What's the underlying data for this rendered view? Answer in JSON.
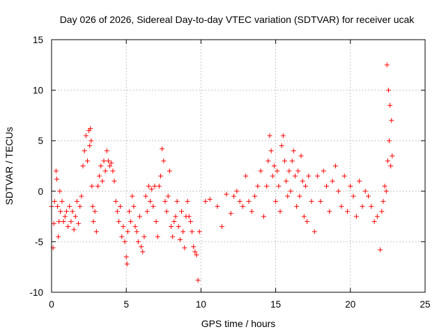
{
  "chart_data": {
    "type": "scatter",
    "title": "Day 026 of 2026, Sidereal Day-to-day VTEC variation (SDTVAR) for receiver ucak",
    "xlabel": "GPS time / hours",
    "ylabel": "SDTVAR / TECUs",
    "xlim": [
      0,
      25
    ],
    "ylim": [
      -10,
      15
    ],
    "xticks": [
      0,
      5,
      10,
      15,
      20,
      25
    ],
    "yticks": [
      -10,
      -5,
      0,
      5,
      10,
      15
    ],
    "xtick_labels": [
      "0",
      "5",
      "10",
      "15",
      "20",
      "25"
    ],
    "ytick_labels": [
      "-10",
      "-5",
      "0",
      "5",
      "10",
      "15"
    ],
    "grid": true,
    "legend": "none",
    "marker": "plus",
    "series": [
      {
        "name": "ucak",
        "color": "#ff0000",
        "x": [
          0.0,
          0.1,
          0.15,
          0.2,
          0.3,
          0.35,
          0.4,
          0.45,
          0.5,
          0.55,
          0.6,
          0.7,
          0.8,
          0.9,
          1.0,
          1.1,
          1.2,
          1.3,
          1.4,
          1.5,
          1.6,
          1.7,
          1.8,
          1.9,
          2.0,
          2.1,
          2.2,
          2.3,
          2.4,
          2.5,
          2.55,
          2.6,
          2.65,
          2.7,
          2.75,
          2.8,
          2.9,
          3.0,
          3.1,
          3.2,
          3.3,
          3.4,
          3.5,
          3.6,
          3.7,
          3.8,
          3.9,
          4.0,
          4.1,
          4.2,
          4.3,
          4.4,
          4.5,
          4.6,
          4.7,
          4.8,
          4.9,
          5.0,
          5.05,
          5.1,
          5.2,
          5.3,
          5.4,
          5.5,
          5.6,
          5.7,
          5.8,
          5.9,
          6.0,
          6.1,
          6.2,
          6.3,
          6.4,
          6.5,
          6.6,
          6.7,
          6.8,
          6.9,
          7.0,
          7.1,
          7.2,
          7.3,
          7.4,
          7.5,
          7.6,
          7.7,
          7.8,
          7.9,
          8.0,
          8.1,
          8.2,
          8.3,
          8.4,
          8.5,
          8.6,
          8.7,
          8.8,
          8.9,
          9.0,
          9.1,
          9.2,
          9.3,
          9.4,
          9.5,
          9.6,
          9.7,
          9.8,
          9.9,
          10.3,
          10.6,
          11.1,
          11.4,
          11.7,
          12.0,
          12.2,
          12.4,
          12.6,
          12.8,
          13.0,
          13.2,
          13.4,
          13.6,
          13.8,
          14.0,
          14.2,
          14.4,
          14.5,
          14.6,
          14.7,
          14.8,
          14.9,
          15.0,
          15.1,
          15.2,
          15.3,
          15.4,
          15.5,
          15.6,
          15.7,
          15.8,
          15.9,
          16.0,
          16.1,
          16.2,
          16.3,
          16.4,
          16.5,
          16.6,
          16.7,
          16.8,
          16.9,
          17.0,
          17.1,
          17.2,
          17.4,
          17.6,
          17.8,
          18.0,
          18.2,
          18.4,
          18.6,
          18.8,
          19.0,
          19.2,
          19.4,
          19.6,
          19.8,
          20.0,
          20.2,
          20.4,
          20.6,
          20.8,
          21.0,
          21.2,
          21.4,
          21.6,
          21.8,
          22.0,
          22.1,
          22.2,
          22.3,
          22.4,
          22.45,
          22.5,
          22.55,
          22.6,
          22.65,
          22.7,
          22.75,
          22.8
        ],
        "y": [
          -1.5,
          -5.6,
          -3.2,
          -1.0,
          2.0,
          1.2,
          -1.5,
          -4.5,
          -3.0,
          0.0,
          -2.0,
          -1.0,
          -3.0,
          -2.5,
          -2.0,
          -3.5,
          -1.5,
          -3.0,
          -2.0,
          -3.8,
          -2.5,
          -1.0,
          -3.2,
          -1.5,
          -0.5,
          2.5,
          4.0,
          5.5,
          3.0,
          6.0,
          4.5,
          6.2,
          5.0,
          0.5,
          -1.5,
          -3.0,
          -2.0,
          -4.0,
          0.5,
          1.5,
          2.5,
          1.0,
          3.0,
          2.0,
          4.0,
          3.0,
          2.5,
          2.8,
          2.0,
          1.0,
          -1.0,
          -2.0,
          -3.0,
          -1.5,
          -4.5,
          -3.5,
          -5.0,
          -6.5,
          -7.2,
          -4.0,
          -2.0,
          -3.0,
          -0.5,
          -1.5,
          -3.5,
          -4.0,
          -5.0,
          -2.5,
          -5.5,
          -6.0,
          -4.5,
          -0.5,
          -2.0,
          0.5,
          -1.0,
          0.2,
          -1.5,
          0.5,
          -3.0,
          -4.5,
          0.5,
          1.5,
          4.2,
          3.0,
          -1.0,
          -2.0,
          -0.5,
          2.0,
          -3.5,
          -4.5,
          -3.0,
          -2.5,
          -1.0,
          -3.5,
          -4.8,
          -2.0,
          -4.0,
          -5.6,
          -2.5,
          -1.0,
          -2.5,
          -3.0,
          -4.0,
          -5.5,
          -6.0,
          -6.3,
          -8.8,
          -4.0,
          -1.0,
          -0.8,
          -1.5,
          -3.5,
          -0.3,
          -2.2,
          -0.5,
          0.0,
          -1.0,
          -1.5,
          1.5,
          -1.0,
          -2.0,
          -0.5,
          0.5,
          2.0,
          -2.5,
          0.5,
          3.0,
          5.5,
          4.0,
          1.5,
          2.5,
          -1.0,
          2.0,
          0.5,
          -2.0,
          4.5,
          5.5,
          3.0,
          1.0,
          -0.5,
          2.0,
          0.0,
          3.0,
          4.0,
          1.5,
          -1.5,
          2.0,
          -0.5,
          3.5,
          1.0,
          -2.5,
          0.5,
          -3.0,
          1.5,
          -1.0,
          -4.0,
          1.5,
          -1.0,
          2.0,
          0.5,
          -2.0,
          1.0,
          2.5,
          0.0,
          -1.5,
          1.5,
          -2.0,
          0.5,
          -0.5,
          -2.5,
          1.0,
          -1.5,
          0.0,
          -0.5,
          -1.5,
          -3.0,
          -2.5,
          -5.8,
          -2.0,
          -1.0,
          0.5,
          0.0,
          12.5,
          3.0,
          10.0,
          5.0,
          8.5,
          2.5,
          7.0,
          3.5
        ]
      }
    ]
  }
}
